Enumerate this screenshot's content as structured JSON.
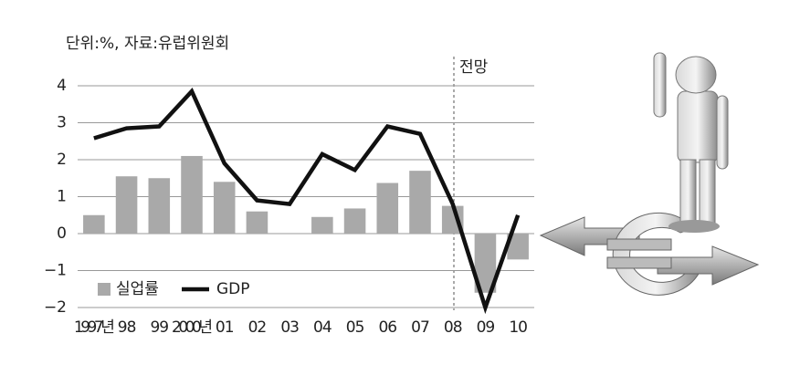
{
  "chart_data": {
    "type": "bar_line",
    "unit_note": "단위:%, 자료:유럽위원회",
    "forecast_label": "전망",
    "categories": [
      "1997년",
      "98",
      "99",
      "2000년",
      "01",
      "02",
      "03",
      "04",
      "05",
      "06",
      "07",
      "08",
      "09",
      "10"
    ],
    "series": [
      {
        "name": "실업률",
        "type": "bar",
        "color": "#a9a9a9",
        "values": [
          0.5,
          1.55,
          1.5,
          2.1,
          1.4,
          0.6,
          null,
          0.45,
          0.68,
          1.37,
          1.7,
          0.75,
          -1.6,
          -0.7
        ]
      },
      {
        "name": "GDP",
        "type": "line",
        "color": "#111111",
        "values": [
          2.58,
          2.85,
          2.9,
          3.85,
          1.9,
          0.9,
          0.8,
          2.15,
          1.72,
          2.9,
          2.7,
          0.8,
          -2.0,
          0.5
        ]
      }
    ],
    "ylim": [
      -2,
      4
    ],
    "yticks": [
      {
        "value": -2,
        "label": "−2"
      },
      {
        "value": -1,
        "label": "−1"
      },
      0,
      1,
      2,
      3,
      4
    ],
    "grid": true,
    "legend": "lower left"
  }
}
